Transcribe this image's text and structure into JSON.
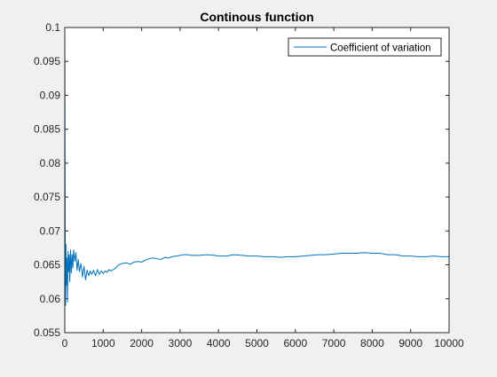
{
  "chart_data": {
    "type": "line",
    "title": "Continous function",
    "xlabel": "",
    "ylabel": "",
    "xlim": [
      0,
      10000
    ],
    "ylim": [
      0.055,
      0.1
    ],
    "xticks": [
      0,
      1000,
      2000,
      3000,
      4000,
      5000,
      6000,
      7000,
      8000,
      9000,
      10000
    ],
    "yticks": [
      0.055,
      0.06,
      0.065,
      0.07,
      0.075,
      0.08,
      0.085,
      0.09,
      0.095,
      0.1
    ],
    "xtick_labels": [
      "0",
      "1000",
      "2000",
      "3000",
      "4000",
      "5000",
      "6000",
      "7000",
      "8000",
      "9000",
      "10000"
    ],
    "ytick_labels": [
      "0.055",
      "0.06",
      "0.065",
      "0.07",
      "0.075",
      "0.08",
      "0.085",
      "0.09",
      "0.095",
      "0.1"
    ],
    "grid": false,
    "legend": {
      "position": "top-right"
    },
    "series": [
      {
        "name": "Coefficient of variation",
        "color": "#0072bd",
        "x": [
          0,
          10,
          20,
          30,
          40,
          55,
          70,
          85,
          100,
          115,
          130,
          150,
          170,
          190,
          210,
          230,
          260,
          290,
          320,
          350,
          380,
          420,
          460,
          500,
          540,
          580,
          620,
          660,
          700,
          750,
          800,
          850,
          900,
          950,
          1000,
          1050,
          1100,
          1150,
          1200,
          1300,
          1400,
          1500,
          1600,
          1700,
          1800,
          1900,
          2000,
          2100,
          2200,
          2300,
          2400,
          2500,
          2600,
          2700,
          2800,
          2900,
          3000,
          3100,
          3200,
          3300,
          3500,
          3700,
          3900,
          4000,
          4200,
          4400,
          4600,
          4800,
          5000,
          5200,
          5400,
          5600,
          5800,
          6000,
          6200,
          6400,
          6600,
          6800,
          7000,
          7200,
          7400,
          7600,
          7800,
          8000,
          8200,
          8400,
          8600,
          8800,
          9000,
          9200,
          9400,
          9600,
          9800,
          10000
        ],
        "y": [
          0.1,
          0.072,
          0.059,
          0.068,
          0.062,
          0.066,
          0.0595,
          0.067,
          0.064,
          0.0665,
          0.0625,
          0.0672,
          0.0638,
          0.0665,
          0.0645,
          0.0672,
          0.0655,
          0.0668,
          0.0642,
          0.0658,
          0.064,
          0.0652,
          0.0632,
          0.0648,
          0.0628,
          0.0642,
          0.0634,
          0.0641,
          0.0636,
          0.0642,
          0.0634,
          0.0643,
          0.0636,
          0.0641,
          0.0637,
          0.0641,
          0.0639,
          0.0643,
          0.0641,
          0.0644,
          0.065,
          0.0652,
          0.0653,
          0.0651,
          0.0654,
          0.0655,
          0.0654,
          0.0657,
          0.0659,
          0.066,
          0.0659,
          0.0658,
          0.0661,
          0.066,
          0.0662,
          0.0663,
          0.0664,
          0.0665,
          0.0665,
          0.0664,
          0.0664,
          0.0665,
          0.0664,
          0.0663,
          0.0663,
          0.0665,
          0.0664,
          0.0663,
          0.0663,
          0.0662,
          0.0662,
          0.0661,
          0.0662,
          0.0662,
          0.0663,
          0.0664,
          0.0665,
          0.0665,
          0.0666,
          0.0667,
          0.0667,
          0.0667,
          0.0668,
          0.0667,
          0.0667,
          0.0665,
          0.0665,
          0.0663,
          0.0663,
          0.0662,
          0.0662,
          0.0663,
          0.0662,
          0.0662
        ]
      }
    ]
  }
}
